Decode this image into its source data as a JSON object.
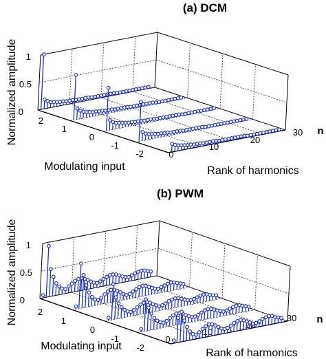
{
  "chart_data": [
    {
      "type": "stem3d",
      "title": "(a)  DCM",
      "zlabel": "Normalized amplitude",
      "ylabel": "Modulating  input",
      "xlabel": "Rank of harmonics",
      "x_end_label": "n",
      "zticks": [
        "0",
        "0.5",
        "1"
      ],
      "yticks": [
        "2",
        "1",
        "0",
        "-1",
        "-2"
      ],
      "xticks": [
        "0",
        "10",
        "20",
        "30"
      ],
      "zlim": [
        0,
        1
      ],
      "ylim": [
        -2,
        2
      ],
      "xlim": [
        0,
        37
      ],
      "grid": true,
      "series": [
        {
          "y": 2,
          "amplitudes": [
            1.0,
            0.17,
            0.13,
            0.1,
            0.09,
            0.08,
            0.07,
            0.07,
            0.06,
            0.06,
            0.06,
            0.05,
            0.05,
            0.05,
            0.05,
            0.05,
            0.04,
            0.04,
            0.04,
            0.04,
            0.04,
            0.04,
            0.04,
            0.04,
            0.03,
            0.03,
            0.03,
            0.03,
            0.03,
            0.03,
            0.03,
            0.03,
            0.03,
            0.03,
            0.03
          ]
        },
        {
          "y": 1,
          "amplitudes": [
            0.82,
            0.2,
            0.15,
            0.12,
            0.1,
            0.09,
            0.08,
            0.08,
            0.07,
            0.07,
            0.06,
            0.06,
            0.06,
            0.05,
            0.05,
            0.05,
            0.05,
            0.05,
            0.04,
            0.04,
            0.04,
            0.04,
            0.04,
            0.04,
            0.04,
            0.04,
            0.03,
            0.03,
            0.03,
            0.03,
            0.03,
            0.03,
            0.03,
            0.03,
            0.03
          ]
        },
        {
          "y": 0,
          "amplitudes": [
            0.78,
            0.18,
            0.14,
            0.11,
            0.1,
            0.09,
            0.08,
            0.07,
            0.07,
            0.06,
            0.06,
            0.06,
            0.05,
            0.05,
            0.05,
            0.05,
            0.04,
            0.04,
            0.04,
            0.04,
            0.04,
            0.04,
            0.04,
            0.04,
            0.03,
            0.03,
            0.03,
            0.03,
            0.03,
            0.03,
            0.03,
            0.03,
            0.03,
            0.03,
            0.03
          ]
        },
        {
          "y": -1,
          "amplitudes": [
            0.72,
            0.16,
            0.12,
            0.1,
            0.09,
            0.08,
            0.07,
            0.07,
            0.06,
            0.06,
            0.05,
            0.05,
            0.05,
            0.05,
            0.04,
            0.04,
            0.04,
            0.04,
            0.04,
            0.04,
            0.04,
            0.03,
            0.03,
            0.03,
            0.03,
            0.03,
            0.03,
            0.03,
            0.03,
            0.03,
            0.03,
            0.03,
            0.03,
            0.03,
            0.03
          ]
        },
        {
          "y": -2,
          "amplitudes": [
            0.15,
            0.12,
            0.1,
            0.09,
            0.08,
            0.07,
            0.07,
            0.06,
            0.06,
            0.06,
            0.05,
            0.05,
            0.05,
            0.05,
            0.05,
            0.04,
            0.04,
            0.04,
            0.04,
            0.04,
            0.04,
            0.04,
            0.04,
            0.04,
            0.03,
            0.03,
            0.03,
            0.03,
            0.03,
            0.03,
            0.03,
            0.03,
            0.03,
            0.03,
            0.03
          ]
        }
      ]
    },
    {
      "type": "stem3d",
      "title": "(b)  PWM",
      "zlabel": "Normalized amplitude",
      "ylabel": "Modulating  input",
      "xlabel": "Rank of harmonics",
      "x_end_label": "n",
      "zticks": [
        "0",
        "0.5",
        "1"
      ],
      "yticks": [
        "2",
        "1",
        "0",
        "-1",
        "-2"
      ],
      "xticks": [
        "0",
        "10",
        "20",
        "30"
      ],
      "zlim": [
        0,
        1
      ],
      "ylim": [
        -2,
        2
      ],
      "xlim": [
        0,
        37
      ],
      "grid": true,
      "series": [
        {
          "y": 2,
          "amplitudes": [
            0.05,
            0.93,
            0.5,
            0.35,
            0.22,
            0.15,
            0.1,
            0.08,
            0.12,
            0.16,
            0.2,
            0.22,
            0.22,
            0.2,
            0.17,
            0.13,
            0.1,
            0.08,
            0.1,
            0.13,
            0.16,
            0.18,
            0.18,
            0.17,
            0.14,
            0.11,
            0.09,
            0.08,
            0.1,
            0.12,
            0.14,
            0.15,
            0.14,
            0.12,
            0.1
          ]
        },
        {
          "y": 1,
          "amplitudes": [
            0.05,
            0.82,
            0.6,
            0.4,
            0.26,
            0.17,
            0.11,
            0.09,
            0.12,
            0.17,
            0.21,
            0.23,
            0.22,
            0.19,
            0.15,
            0.11,
            0.08,
            0.09,
            0.12,
            0.15,
            0.18,
            0.19,
            0.18,
            0.15,
            0.12,
            0.09,
            0.08,
            0.1,
            0.12,
            0.14,
            0.15,
            0.14,
            0.12,
            0.1,
            0.08
          ]
        },
        {
          "y": 0,
          "amplitudes": [
            0.05,
            0.65,
            0.4,
            0.28,
            0.2,
            0.14,
            0.1,
            0.08,
            0.1,
            0.14,
            0.18,
            0.2,
            0.2,
            0.18,
            0.14,
            0.11,
            0.08,
            0.09,
            0.11,
            0.14,
            0.16,
            0.17,
            0.16,
            0.14,
            0.11,
            0.09,
            0.08,
            0.09,
            0.11,
            0.13,
            0.14,
            0.13,
            0.11,
            0.09,
            0.08
          ]
        },
        {
          "y": -1,
          "amplitudes": [
            0.05,
            0.58,
            0.42,
            0.3,
            0.21,
            0.15,
            0.11,
            0.09,
            0.11,
            0.15,
            0.19,
            0.21,
            0.21,
            0.19,
            0.15,
            0.12,
            0.09,
            0.09,
            0.11,
            0.14,
            0.17,
            0.18,
            0.17,
            0.15,
            0.12,
            0.1,
            0.08,
            0.09,
            0.11,
            0.13,
            0.14,
            0.14,
            0.12,
            0.1,
            0.08
          ]
        },
        {
          "y": -2,
          "amplitudes": [
            0.05,
            0.45,
            0.55,
            0.38,
            0.25,
            0.16,
            0.1,
            0.08,
            0.11,
            0.16,
            0.2,
            0.22,
            0.21,
            0.18,
            0.14,
            0.1,
            0.08,
            0.09,
            0.12,
            0.16,
            0.18,
            0.19,
            0.17,
            0.14,
            0.11,
            0.08,
            0.08,
            0.1,
            0.13,
            0.15,
            0.16,
            0.15,
            0.12,
            0.1,
            0.08
          ]
        }
      ]
    }
  ],
  "colors": {
    "stem": "#1c2fd0",
    "axes": "#000000",
    "grid": "#222222"
  }
}
